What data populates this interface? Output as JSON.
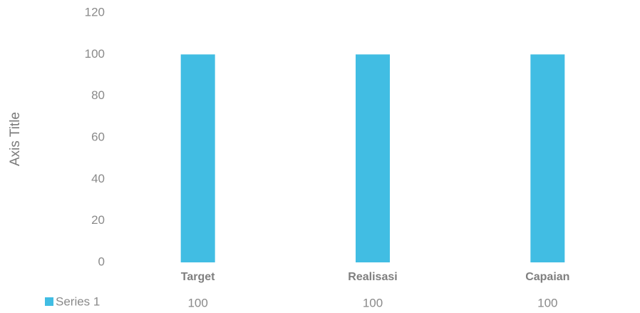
{
  "chart_data": {
    "type": "bar",
    "y_axis_label": "Axis Title",
    "categories": [
      "Target",
      "Realisasi",
      "Capaian"
    ],
    "series": [
      {
        "name": "Series 1",
        "color": "#41bde3",
        "values": [
          100,
          100,
          100
        ]
      }
    ],
    "ylim": [
      0,
      120
    ],
    "yticks": [
      0,
      20,
      40,
      60,
      80,
      100,
      120
    ],
    "grid": false
  }
}
